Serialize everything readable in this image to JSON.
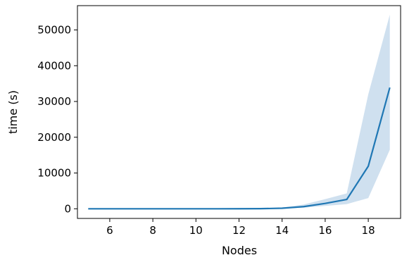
{
  "chart_data": {
    "type": "line",
    "xlabel": "Nodes",
    "ylabel": "time (s)",
    "xlim": [
      4.5,
      19.5
    ],
    "ylim": [
      -2700,
      56800
    ],
    "x_ticks": [
      6,
      8,
      10,
      12,
      14,
      16,
      18
    ],
    "y_ticks": [
      0,
      10000,
      20000,
      30000,
      40000,
      50000
    ],
    "grid": false,
    "legend": "none",
    "series": [
      {
        "color": "#1f77b4",
        "band_color": "#cfe0ef",
        "x": [
          5,
          6,
          7,
          8,
          9,
          10,
          11,
          12,
          13,
          14,
          15,
          16,
          17,
          18,
          19
        ],
        "values": [
          0,
          0,
          0,
          0,
          0,
          0,
          1,
          5,
          30,
          150,
          600,
          1500,
          2600,
          11900,
          33900
        ],
        "lower": [
          0,
          0,
          0,
          0,
          0,
          0,
          0,
          2,
          15,
          80,
          300,
          800,
          1300,
          3000,
          16500
        ],
        "upper": [
          0,
          0,
          0,
          0,
          0,
          0,
          2,
          10,
          60,
          300,
          1200,
          2700,
          4300,
          32000,
          54300
        ]
      }
    ]
  }
}
